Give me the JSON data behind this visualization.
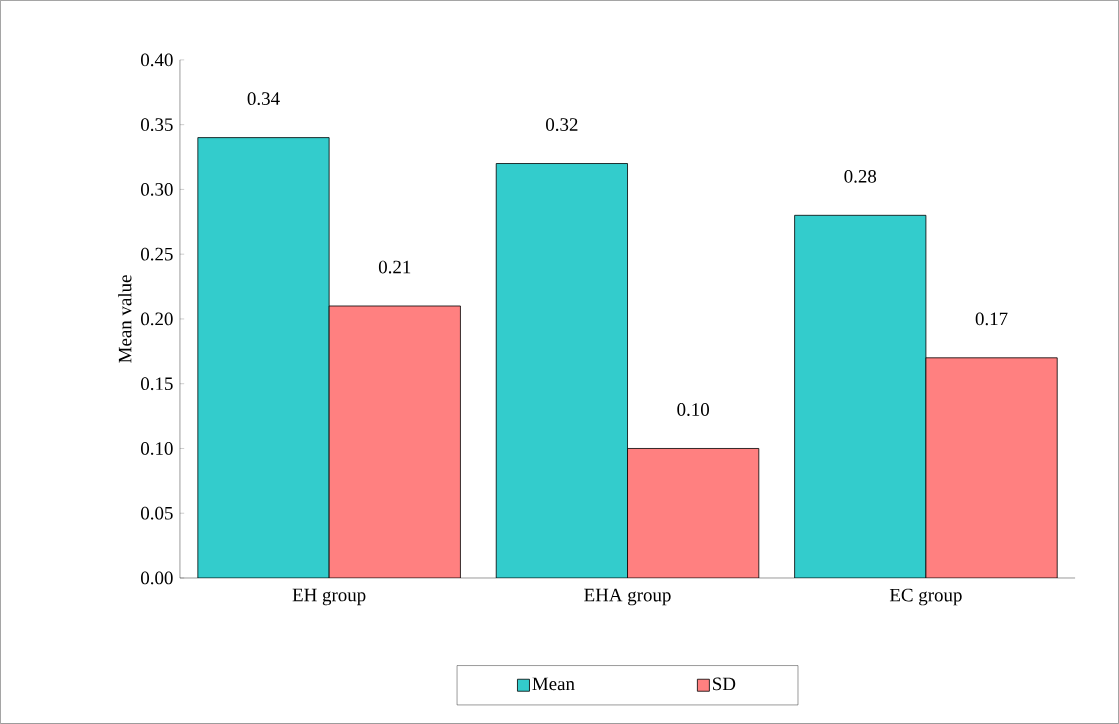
{
  "chart_data": {
    "type": "bar",
    "ylabel": "Mean value",
    "categories": [
      "EH group",
      "EHA group",
      "EC group"
    ],
    "series": [
      {
        "name": "Mean",
        "color": "#33cccc",
        "values": [
          0.34,
          0.32,
          0.28
        ],
        "value_labels": [
          "0.34",
          "0.32",
          "0.28"
        ]
      },
      {
        "name": "SD",
        "color": "#ff8080",
        "values": [
          0.21,
          0.1,
          0.17
        ],
        "value_labels": [
          "0.21",
          "0.10",
          "0.17"
        ]
      }
    ],
    "ylim": [
      0,
      0.4
    ],
    "yticks": [
      {
        "value": 0,
        "label": "0.00"
      },
      {
        "value": 0.05,
        "label": "0.05"
      },
      {
        "value": 0.1,
        "label": "0.10"
      },
      {
        "value": 0.15,
        "label": "0.15"
      },
      {
        "value": 0.2,
        "label": "0.20"
      },
      {
        "value": 0.25,
        "label": "0.25"
      },
      {
        "value": 0.3,
        "label": "0.30"
      },
      {
        "value": 0.35,
        "label": "0.35"
      },
      {
        "value": 0.4,
        "label": "0.40"
      }
    ],
    "legend": "bottom",
    "grid": false
  }
}
